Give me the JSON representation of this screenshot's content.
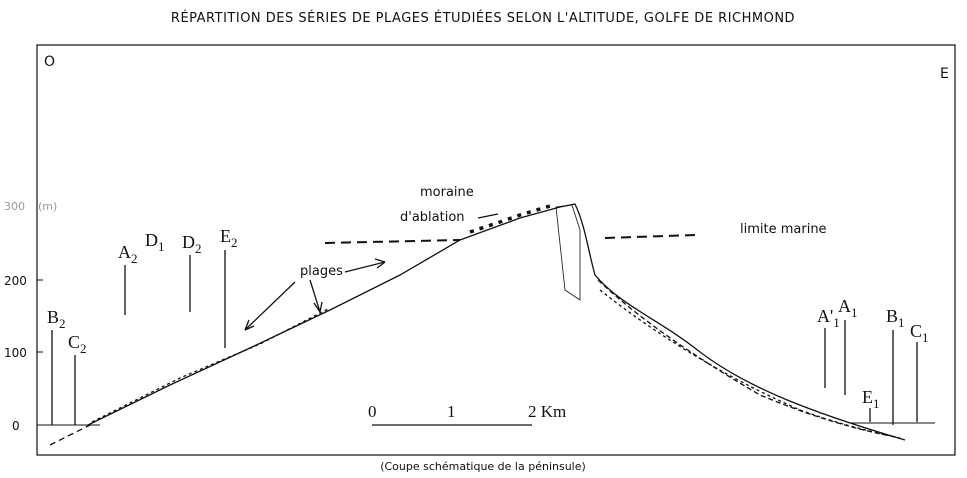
{
  "header": {
    "title": "RÉPARTITION DES SÉRIES DE PLAGES ÉTUDIÉES SELON L'ALTITUDE, GOLFE DE RICHMOND"
  },
  "caption": "(Coupe schématique de la péninsule)",
  "corners": {
    "west": "O",
    "east": "E"
  },
  "axis": {
    "unit": "(m)",
    "ticks": [
      "300",
      "200",
      "100",
      "0"
    ]
  },
  "annotations": {
    "moraine": "moraine",
    "ablation": "d'ablation",
    "limite": "limite marine",
    "plages": "plages"
  },
  "scale": {
    "zero": "0",
    "one": "1",
    "two": "2 Km"
  },
  "series_labels": [
    {
      "letter": "A",
      "sub": "2"
    },
    {
      "letter": "D",
      "sub": "1"
    },
    {
      "letter": "D",
      "sub": "2"
    },
    {
      "letter": "E",
      "sub": "2"
    },
    {
      "letter": "B",
      "sub": "2"
    },
    {
      "letter": "C",
      "sub": "2"
    },
    {
      "letter": "A'",
      "sub": "1"
    },
    {
      "letter": "A",
      "sub": "1"
    },
    {
      "letter": "B",
      "sub": "1"
    },
    {
      "letter": "C",
      "sub": "1"
    },
    {
      "letter": "E",
      "sub": "1"
    }
  ]
}
